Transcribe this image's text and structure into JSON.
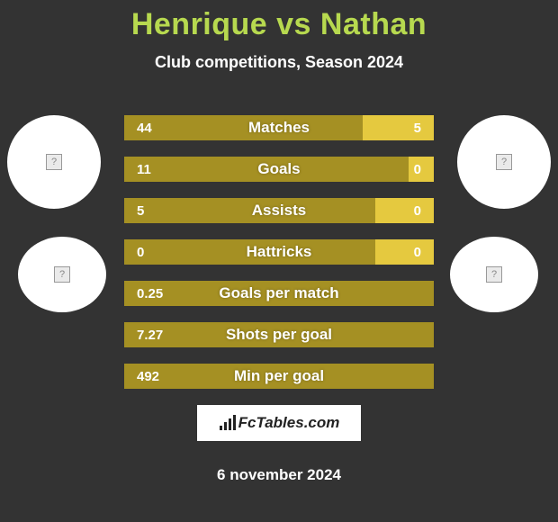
{
  "title": "Henrique vs Nathan",
  "subtitle": "Club competitions, Season 2024",
  "date": "6 november 2024",
  "logo": {
    "text": "FcTables.com"
  },
  "colors": {
    "left_bar": "#a59023",
    "right_bar": "#e5c93f",
    "neutral_bar": "#a59023",
    "background": "#333333",
    "accent": "#b7d94f",
    "text": "#ffffff"
  },
  "bar_total_width": 344,
  "stats": [
    {
      "label": "Matches",
      "left_value": "44",
      "right_value": "5",
      "left_num": 44,
      "right_num": 5,
      "left_width_pct": 77,
      "right_width_pct": 23
    },
    {
      "label": "Goals",
      "left_value": "11",
      "right_value": "0",
      "left_num": 11,
      "right_num": 0,
      "left_width_pct": 92,
      "right_width_pct": 8
    },
    {
      "label": "Assists",
      "left_value": "5",
      "right_value": "0",
      "left_num": 5,
      "right_num": 0,
      "left_width_pct": 81,
      "right_width_pct": 19
    },
    {
      "label": "Hattricks",
      "left_value": "0",
      "right_value": "0",
      "left_num": 0,
      "right_num": 0,
      "left_width_pct": 81,
      "right_width_pct": 19
    },
    {
      "label": "Goals per match",
      "left_value": "0.25",
      "right_value": "",
      "left_num": 0.25,
      "right_num": 0,
      "left_width_pct": 100,
      "right_width_pct": 0
    },
    {
      "label": "Shots per goal",
      "left_value": "7.27",
      "right_value": "",
      "left_num": 7.27,
      "right_num": 0,
      "left_width_pct": 100,
      "right_width_pct": 0
    },
    {
      "label": "Min per goal",
      "left_value": "492",
      "right_value": "",
      "left_num": 492,
      "right_num": 0,
      "left_width_pct": 100,
      "right_width_pct": 0
    }
  ]
}
